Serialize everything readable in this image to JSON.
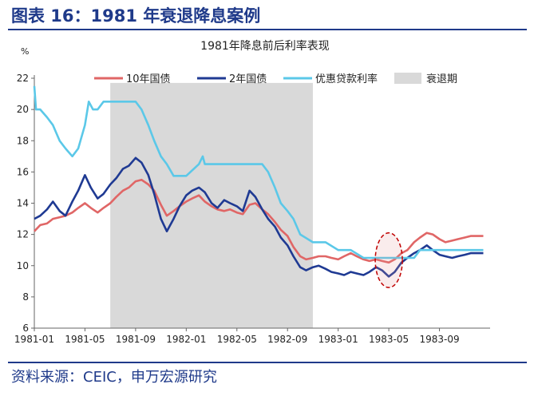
{
  "figure": {
    "title": "图表 16：1981 年衰退降息案例",
    "source": "资料来源：CEIC，申万宏源研究"
  },
  "chart_data": {
    "type": "line",
    "title": "1981年降息前后利率表现",
    "ylabel": "%",
    "xlabel": "",
    "ylim": [
      6,
      22
    ],
    "yticks": [
      6,
      8,
      10,
      12,
      14,
      16,
      18,
      20,
      22
    ],
    "x_start": "1981-01",
    "x_end": "1983-12",
    "xticks": [
      "1981-01",
      "1981-05",
      "1981-09",
      "1982-01",
      "1982-05",
      "1982-09",
      "1983-01",
      "1983-05",
      "1983-09"
    ],
    "grid": false,
    "legend_position": "top",
    "recession": {
      "name": "衰退期",
      "start": "1981-07",
      "end": "1982-11",
      "color": "#d9d9d9"
    },
    "annotation": {
      "type": "dashed-ellipse",
      "center": "1983-05",
      "y_range": [
        8.6,
        12.1
      ],
      "color": "#c00000"
    },
    "series": [
      {
        "name": "10年国债",
        "color": "#e06666",
        "points": [
          [
            "1981-01",
            12.2
          ],
          [
            "1981-01-15",
            12.6
          ],
          [
            "1981-02",
            12.7
          ],
          [
            "1981-02-15",
            13.0
          ],
          [
            "1981-03",
            13.1
          ],
          [
            "1981-03-15",
            13.2
          ],
          [
            "1981-04",
            13.4
          ],
          [
            "1981-04-15",
            13.7
          ],
          [
            "1981-05",
            14.0
          ],
          [
            "1981-05-15",
            13.7
          ],
          [
            "1981-06",
            13.4
          ],
          [
            "1981-06-15",
            13.7
          ],
          [
            "1981-07",
            14.0
          ],
          [
            "1981-07-15",
            14.4
          ],
          [
            "1981-08",
            14.8
          ],
          [
            "1981-08-15",
            15.0
          ],
          [
            "1981-09",
            15.4
          ],
          [
            "1981-09-15",
            15.5
          ],
          [
            "1981-10",
            15.2
          ],
          [
            "1981-10-15",
            14.8
          ],
          [
            "1981-11",
            13.9
          ],
          [
            "1981-11-15",
            13.2
          ],
          [
            "1981-12",
            13.5
          ],
          [
            "1981-12-15",
            13.8
          ],
          [
            "1982-01",
            14.1
          ],
          [
            "1982-01-15",
            14.3
          ],
          [
            "1982-02",
            14.5
          ],
          [
            "1982-02-15",
            14.1
          ],
          [
            "1982-03",
            13.8
          ],
          [
            "1982-03-15",
            13.6
          ],
          [
            "1982-04",
            13.5
          ],
          [
            "1982-04-15",
            13.6
          ],
          [
            "1982-05",
            13.4
          ],
          [
            "1982-05-15",
            13.3
          ],
          [
            "1982-06",
            13.9
          ],
          [
            "1982-06-15",
            14.0
          ],
          [
            "1982-07",
            13.6
          ],
          [
            "1982-07-15",
            13.3
          ],
          [
            "1982-08",
            12.8
          ],
          [
            "1982-08-15",
            12.3
          ],
          [
            "1982-09",
            11.9
          ],
          [
            "1982-09-15",
            11.2
          ],
          [
            "1982-10",
            10.6
          ],
          [
            "1982-10-15",
            10.4
          ],
          [
            "1982-11",
            10.5
          ],
          [
            "1982-11-15",
            10.6
          ],
          [
            "1982-12",
            10.6
          ],
          [
            "1982-12-15",
            10.5
          ],
          [
            "1983-01",
            10.4
          ],
          [
            "1983-01-15",
            10.6
          ],
          [
            "1983-02",
            10.8
          ],
          [
            "1983-02-15",
            10.6
          ],
          [
            "1983-03",
            10.4
          ],
          [
            "1983-03-15",
            10.3
          ],
          [
            "1983-04",
            10.4
          ],
          [
            "1983-04-15",
            10.3
          ],
          [
            "1983-05",
            10.2
          ],
          [
            "1983-05-15",
            10.4
          ],
          [
            "1983-06",
            10.8
          ],
          [
            "1983-06-15",
            11.0
          ],
          [
            "1983-07",
            11.5
          ],
          [
            "1983-07-15",
            11.8
          ],
          [
            "1983-08",
            12.1
          ],
          [
            "1983-08-15",
            12.0
          ],
          [
            "1983-09",
            11.7
          ],
          [
            "1983-09-15",
            11.5
          ],
          [
            "1983-10",
            11.6
          ],
          [
            "1983-10-15",
            11.7
          ],
          [
            "1983-11",
            11.8
          ],
          [
            "1983-11-15",
            11.9
          ],
          [
            "1983-12",
            11.9
          ],
          [
            "1983-12-15",
            11.9
          ]
        ]
      },
      {
        "name": "2年国债",
        "color": "#1f3a93",
        "points": [
          [
            "1981-01",
            13.0
          ],
          [
            "1981-01-15",
            13.2
          ],
          [
            "1981-02",
            13.6
          ],
          [
            "1981-02-15",
            14.1
          ],
          [
            "1981-03",
            13.5
          ],
          [
            "1981-03-15",
            13.2
          ],
          [
            "1981-04",
            14.1
          ],
          [
            "1981-04-15",
            14.8
          ],
          [
            "1981-05",
            15.8
          ],
          [
            "1981-05-15",
            15.0
          ],
          [
            "1981-06",
            14.3
          ],
          [
            "1981-06-15",
            14.6
          ],
          [
            "1981-07",
            15.2
          ],
          [
            "1981-07-15",
            15.6
          ],
          [
            "1981-08",
            16.2
          ],
          [
            "1981-08-15",
            16.4
          ],
          [
            "1981-09",
            16.9
          ],
          [
            "1981-09-15",
            16.6
          ],
          [
            "1981-10",
            15.8
          ],
          [
            "1981-10-15",
            14.6
          ],
          [
            "1981-11",
            13.0
          ],
          [
            "1981-11-15",
            12.2
          ],
          [
            "1981-12",
            13.0
          ],
          [
            "1981-12-15",
            13.8
          ],
          [
            "1982-01",
            14.5
          ],
          [
            "1982-01-15",
            14.8
          ],
          [
            "1982-02",
            15.0
          ],
          [
            "1982-02-15",
            14.7
          ],
          [
            "1982-03",
            14.0
          ],
          [
            "1982-03-15",
            13.7
          ],
          [
            "1982-04",
            14.2
          ],
          [
            "1982-04-15",
            14.0
          ],
          [
            "1982-05",
            13.8
          ],
          [
            "1982-05-15",
            13.5
          ],
          [
            "1982-06",
            14.8
          ],
          [
            "1982-06-15",
            14.4
          ],
          [
            "1982-07",
            13.6
          ],
          [
            "1982-07-15",
            13.0
          ],
          [
            "1982-08",
            12.5
          ],
          [
            "1982-08-15",
            11.8
          ],
          [
            "1982-09",
            11.3
          ],
          [
            "1982-09-15",
            10.6
          ],
          [
            "1982-10",
            9.9
          ],
          [
            "1982-10-15",
            9.7
          ],
          [
            "1982-11",
            9.9
          ],
          [
            "1982-11-15",
            10.0
          ],
          [
            "1982-12",
            9.8
          ],
          [
            "1982-12-15",
            9.6
          ],
          [
            "1983-01",
            9.5
          ],
          [
            "1983-01-15",
            9.4
          ],
          [
            "1983-02",
            9.6
          ],
          [
            "1983-02-15",
            9.5
          ],
          [
            "1983-03",
            9.4
          ],
          [
            "1983-03-15",
            9.6
          ],
          [
            "1983-04",
            9.9
          ],
          [
            "1983-04-15",
            9.7
          ],
          [
            "1983-05",
            9.3
          ],
          [
            "1983-05-15",
            9.6
          ],
          [
            "1983-06",
            10.2
          ],
          [
            "1983-06-15",
            10.5
          ],
          [
            "1983-07",
            10.8
          ],
          [
            "1983-07-15",
            11.0
          ],
          [
            "1983-08",
            11.3
          ],
          [
            "1983-08-15",
            11.0
          ],
          [
            "1983-09",
            10.7
          ],
          [
            "1983-09-15",
            10.6
          ],
          [
            "1983-10",
            10.5
          ],
          [
            "1983-10-15",
            10.6
          ],
          [
            "1983-11",
            10.7
          ],
          [
            "1983-11-15",
            10.8
          ],
          [
            "1983-12",
            10.8
          ],
          [
            "1983-12-15",
            10.8
          ]
        ]
      },
      {
        "name": "优惠贷款利率",
        "color": "#5bc8e8",
        "points": [
          [
            "1981-01",
            21.5
          ],
          [
            "1981-01-05",
            20.0
          ],
          [
            "1981-01-15",
            20.0
          ],
          [
            "1981-02",
            19.5
          ],
          [
            "1981-02-15",
            19.0
          ],
          [
            "1981-03",
            18.0
          ],
          [
            "1981-03-15",
            17.5
          ],
          [
            "1981-04",
            17.0
          ],
          [
            "1981-04-15",
            17.5
          ],
          [
            "1981-05",
            19.0
          ],
          [
            "1981-05-10",
            20.5
          ],
          [
            "1981-05-20",
            20.0
          ],
          [
            "1981-06",
            20.0
          ],
          [
            "1981-06-15",
            20.5
          ],
          [
            "1981-07",
            20.5
          ],
          [
            "1981-08",
            20.5
          ],
          [
            "1981-09",
            20.5
          ],
          [
            "1981-09-15",
            20.0
          ],
          [
            "1981-10",
            19.0
          ],
          [
            "1981-10-15",
            18.0
          ],
          [
            "1981-11",
            17.0
          ],
          [
            "1981-11-15",
            16.5
          ],
          [
            "1981-12",
            15.75
          ],
          [
            "1982-01",
            15.75
          ],
          [
            "1982-02",
            16.5
          ],
          [
            "1982-02-10",
            17.0
          ],
          [
            "1982-02-15",
            16.5
          ],
          [
            "1982-03",
            16.5
          ],
          [
            "1982-04",
            16.5
          ],
          [
            "1982-05",
            16.5
          ],
          [
            "1982-06",
            16.5
          ],
          [
            "1982-07",
            16.5
          ],
          [
            "1982-07-15",
            16.0
          ],
          [
            "1982-08",
            15.0
          ],
          [
            "1982-08-15",
            14.0
          ],
          [
            "1982-09",
            13.5
          ],
          [
            "1982-09-15",
            13.0
          ],
          [
            "1982-10",
            12.0
          ],
          [
            "1982-11",
            11.5
          ],
          [
            "1982-12",
            11.5
          ],
          [
            "1983-01",
            11.0
          ],
          [
            "1983-02",
            11.0
          ],
          [
            "1983-03",
            10.5
          ],
          [
            "1983-04",
            10.5
          ],
          [
            "1983-05",
            10.5
          ],
          [
            "1983-06",
            10.5
          ],
          [
            "1983-07",
            10.5
          ],
          [
            "1983-07-15",
            11.0
          ],
          [
            "1983-08",
            11.0
          ],
          [
            "1983-09",
            11.0
          ],
          [
            "1983-10",
            11.0
          ],
          [
            "1983-11",
            11.0
          ],
          [
            "1983-12",
            11.0
          ],
          [
            "1983-12-15",
            11.0
          ]
        ]
      }
    ]
  }
}
